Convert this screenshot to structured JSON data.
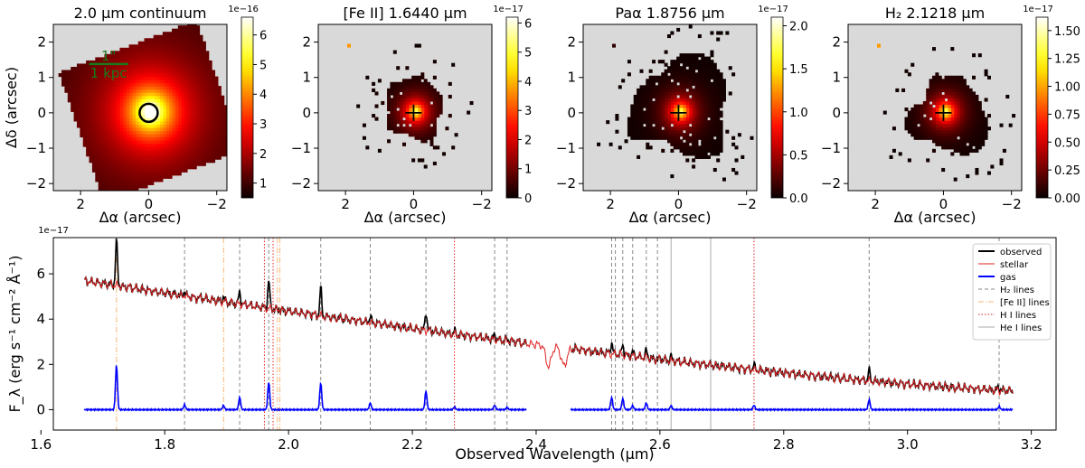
{
  "chart_data": [
    {
      "type": "heatmap",
      "panel": "map",
      "title": "2.0 μm continuum",
      "xlabel": "Δα (arcsec)",
      "ylabel": "Δδ (arcsec)",
      "xlim": [
        2.8,
        -2.3
      ],
      "ylim": [
        -2.2,
        2.5
      ],
      "xticks": [
        "2",
        "0",
        "−2"
      ],
      "yticks": [
        "2",
        "1",
        "0",
        "−1",
        "−2"
      ],
      "colorbar": {
        "range": [
          0.5,
          6.6
        ],
        "ticks": [
          "6",
          "5",
          "4",
          "3",
          "2",
          "1"
        ],
        "exponent": "1e−16"
      },
      "scalebar": {
        "top_label": "1\"",
        "bottom_label": "1 kpc"
      },
      "marker": "circle",
      "morphology": "continuum"
    },
    {
      "type": "heatmap",
      "panel": "map",
      "title": "[Fe II] 1.6440 μm",
      "xlabel": "Δα (arcsec)",
      "ylabel": "",
      "xlim": [
        2.8,
        -2.3
      ],
      "ylim": [
        -2.2,
        2.5
      ],
      "xticks": [
        "2",
        "0",
        "−2"
      ],
      "yticks": [
        "2",
        "1",
        "0",
        "−1",
        "−2"
      ],
      "colorbar": {
        "range": [
          0,
          6.2
        ],
        "ticks": [
          "6",
          "5",
          "4",
          "3",
          "2",
          "1",
          "0"
        ],
        "exponent": "1e−17"
      },
      "marker": "plus",
      "morphology": "compact"
    },
    {
      "type": "heatmap",
      "panel": "map",
      "title": "Paα 1.8756 μm",
      "xlabel": "Δα (arcsec)",
      "ylabel": "",
      "xlim": [
        2.8,
        -2.3
      ],
      "ylim": [
        -2.2,
        2.5
      ],
      "xticks": [
        "2",
        "0",
        "−2"
      ],
      "yticks": [
        "2",
        "1",
        "0",
        "−1",
        "−2"
      ],
      "colorbar": {
        "range": [
          0,
          2.1
        ],
        "ticks": [
          "2.0",
          "1.5",
          "1.0",
          "0.5",
          "0.0"
        ],
        "exponent": "1e−17"
      },
      "marker": "plus",
      "morphology": "extended"
    },
    {
      "type": "heatmap",
      "panel": "map",
      "title": "H₂ 2.1218 μm",
      "xlabel": "Δα (arcsec)",
      "ylabel": "",
      "xlim": [
        2.8,
        -2.3
      ],
      "ylim": [
        -2.2,
        2.5
      ],
      "xticks": [
        "2",
        "0",
        "−2"
      ],
      "yticks": [
        "2",
        "1",
        "0",
        "−1",
        "−2"
      ],
      "colorbar": {
        "range": [
          0,
          1.62
        ],
        "ticks": [
          "1.50",
          "1.25",
          "1.00",
          "0.75",
          "0.50",
          "0.25",
          "0.00"
        ],
        "exponent": "1e−17"
      },
      "marker": "plus",
      "morphology": "medium"
    },
    {
      "type": "line",
      "panel": "spectrum",
      "xlabel": "Observed Wavelength (μm)",
      "ylabel": "F_λ (erg s⁻¹ cm⁻² Å⁻¹)",
      "exponent": "1e−17",
      "xlim": [
        1.62,
        3.24
      ],
      "ylim": [
        -0.9,
        7.6
      ],
      "xticks": [
        "1.6",
        "1.8",
        "2.0",
        "2.2",
        "2.4",
        "2.6",
        "2.8",
        "3.0",
        "3.2"
      ],
      "yticks": [
        "0",
        "2",
        "4",
        "6"
      ],
      "legend_position": "top-right",
      "legend": [
        "observed",
        "stellar",
        "gas",
        "H₂ lines",
        "[Fe II] lines",
        "H I lines",
        "He I lines"
      ],
      "series": [
        {
          "name": "observed",
          "color": "#000000"
        },
        {
          "name": "stellar",
          "color": "#e02020"
        },
        {
          "name": "gas",
          "color": "#0000ff"
        }
      ],
      "continuum": {
        "range": [
          1.67,
          3.17
        ],
        "gap": [
          2.385,
          2.455
        ],
        "start_flux": 5.7,
        "end_flux": 0.85
      },
      "emission_lines": [
        {
          "x": 1.722,
          "amp": 2.0
        },
        {
          "x": 1.832,
          "amp": 0.22
        },
        {
          "x": 1.895,
          "amp": 0.18
        },
        {
          "x": 1.921,
          "amp": 0.55
        },
        {
          "x": 1.968,
          "amp": 1.25
        },
        {
          "x": 2.052,
          "amp": 1.2
        },
        {
          "x": 2.132,
          "amp": 0.3
        },
        {
          "x": 2.222,
          "amp": 0.85
        },
        {
          "x": 2.268,
          "amp": 0.12
        },
        {
          "x": 2.333,
          "amp": 0.2
        },
        {
          "x": 2.353,
          "amp": 0.1
        },
        {
          "x": 2.522,
          "amp": 0.55
        },
        {
          "x": 2.54,
          "amp": 0.5
        },
        {
          "x": 2.556,
          "amp": 0.18
        },
        {
          "x": 2.578,
          "amp": 0.3
        },
        {
          "x": 2.618,
          "amp": 0.18
        },
        {
          "x": 2.752,
          "amp": 0.2
        },
        {
          "x": 2.938,
          "amp": 0.45
        },
        {
          "x": 3.148,
          "amp": 0.15
        }
      ],
      "absorption_features": [
        {
          "x": 2.42,
          "depth": 0.9
        },
        {
          "x": 2.445,
          "depth": 0.8
        }
      ],
      "line_markers": [
        {
          "x": 1.722,
          "kind": "Fe II"
        },
        {
          "x": 1.832,
          "kind": "H2"
        },
        {
          "x": 1.895,
          "kind": "Fe II"
        },
        {
          "x": 1.921,
          "kind": "H2"
        },
        {
          "x": 1.961,
          "kind": "H I"
        },
        {
          "x": 1.968,
          "kind": "H2"
        },
        {
          "x": 1.975,
          "kind": "H I"
        },
        {
          "x": 1.982,
          "kind": "Fe II"
        },
        {
          "x": 1.986,
          "kind": "Fe II"
        },
        {
          "x": 2.052,
          "kind": "H2"
        },
        {
          "x": 2.132,
          "kind": "H2"
        },
        {
          "x": 2.222,
          "kind": "H2"
        },
        {
          "x": 2.268,
          "kind": "H I"
        },
        {
          "x": 2.333,
          "kind": "H2"
        },
        {
          "x": 2.353,
          "kind": "H2"
        },
        {
          "x": 2.522,
          "kind": "H2"
        },
        {
          "x": 2.528,
          "kind": "H2"
        },
        {
          "x": 2.54,
          "kind": "H2"
        },
        {
          "x": 2.556,
          "kind": "H2"
        },
        {
          "x": 2.578,
          "kind": "H2"
        },
        {
          "x": 2.596,
          "kind": "H2"
        },
        {
          "x": 2.618,
          "kind": "He I"
        },
        {
          "x": 2.682,
          "kind": "He I"
        },
        {
          "x": 2.752,
          "kind": "H I"
        },
        {
          "x": 2.938,
          "kind": "H2"
        },
        {
          "x": 3.148,
          "kind": "H2"
        }
      ]
    }
  ]
}
